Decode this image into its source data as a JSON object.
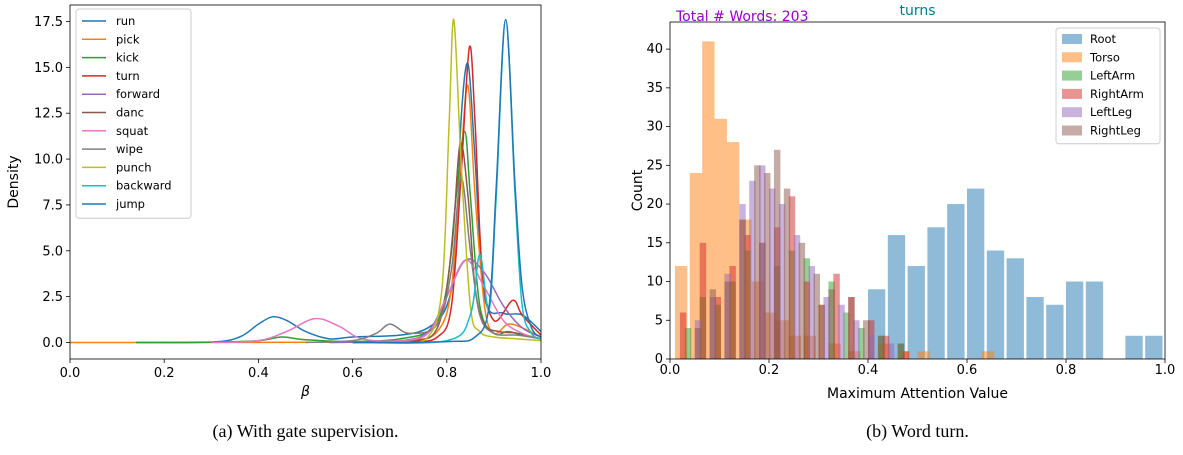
{
  "chart_data": [
    {
      "type": "line",
      "title": "",
      "xlabel": "β",
      "ylabel": "Density",
      "xlim": [
        0.0,
        1.0
      ],
      "ylim": [
        -0.9,
        18.4
      ],
      "xticks": [
        "0.0",
        "0.2",
        "0.4",
        "0.6",
        "0.8",
        "1.0"
      ],
      "yticks": [
        "0.0",
        "2.5",
        "5.0",
        "7.5",
        "10.0",
        "12.5",
        "15.0",
        "17.5"
      ],
      "legend_position": "upper-left",
      "caption": "(a) With gate supervision.",
      "series": [
        {
          "name": "run",
          "color": "#1f77b4",
          "x": [
            0.14,
            0.3,
            0.36,
            0.4,
            0.43,
            0.46,
            0.5,
            0.55,
            0.6,
            0.7,
            0.76,
            0.8,
            0.82,
            0.83,
            0.845,
            0.86,
            0.88,
            0.92,
            0.96,
            1.0
          ],
          "y": [
            0.0,
            0.02,
            0.3,
            1.0,
            1.4,
            1.2,
            0.6,
            0.2,
            0.3,
            0.4,
            0.8,
            2.0,
            5.0,
            12.0,
            15.2,
            10.0,
            2.5,
            1.6,
            1.5,
            0.6
          ]
        },
        {
          "name": "pick",
          "color": "#ff7f0e",
          "x": [
            0.0,
            0.14,
            0.6,
            0.72,
            0.78,
            0.81,
            0.83,
            0.845,
            0.86,
            0.88,
            0.9,
            0.93,
            0.96,
            1.0
          ],
          "y": [
            0.0,
            0.0,
            0.02,
            0.1,
            0.6,
            3.0,
            10.0,
            14.0,
            8.0,
            2.0,
            0.5,
            1.0,
            0.8,
            0.3
          ]
        },
        {
          "name": "kick",
          "color": "#2ca02c",
          "x": [
            0.14,
            0.3,
            0.4,
            0.45,
            0.5,
            0.6,
            0.7,
            0.77,
            0.8,
            0.82,
            0.838,
            0.85,
            0.87,
            0.9,
            0.93,
            0.96,
            1.0
          ],
          "y": [
            0.0,
            0.02,
            0.1,
            0.3,
            0.15,
            0.05,
            0.2,
            0.8,
            3.0,
            8.0,
            11.5,
            8.0,
            2.0,
            0.5,
            0.6,
            0.4,
            0.2
          ]
        },
        {
          "name": "turn",
          "color": "#d62728",
          "x": [
            0.6,
            0.72,
            0.78,
            0.81,
            0.83,
            0.848,
            0.86,
            0.875,
            0.9,
            0.94,
            0.96,
            1.0
          ],
          "y": [
            0.0,
            0.05,
            0.3,
            2.0,
            9.0,
            16.1,
            12.0,
            4.0,
            1.2,
            2.3,
            1.5,
            0.4
          ]
        },
        {
          "name": "forward",
          "color": "#9467bd",
          "x": [
            0.55,
            0.7,
            0.76,
            0.8,
            0.84,
            0.88,
            0.92,
            0.96,
            1.0
          ],
          "y": [
            0.0,
            0.1,
            0.6,
            2.5,
            4.5,
            3.8,
            2.0,
            0.8,
            0.3
          ]
        },
        {
          "name": "danc",
          "color": "#8c564b",
          "x": [
            0.6,
            0.72,
            0.78,
            0.81,
            0.828,
            0.845,
            0.86,
            0.88,
            0.91,
            0.95,
            1.0
          ],
          "y": [
            0.0,
            0.1,
            0.8,
            5.0,
            10.8,
            8.0,
            3.0,
            1.0,
            0.6,
            0.5,
            0.2
          ]
        },
        {
          "name": "squat",
          "color": "#e377c2",
          "x": [
            0.3,
            0.4,
            0.46,
            0.52,
            0.57,
            0.62,
            0.7,
            0.76,
            0.8,
            0.84,
            0.88,
            0.92,
            0.96,
            1.0
          ],
          "y": [
            0.0,
            0.1,
            0.6,
            1.3,
            0.9,
            0.2,
            0.1,
            0.5,
            2.5,
            4.5,
            3.0,
            1.2,
            0.5,
            0.2
          ]
        },
        {
          "name": "wipe",
          "color": "#7f7f7f",
          "x": [
            0.5,
            0.6,
            0.65,
            0.68,
            0.72,
            0.78,
            0.81,
            0.83,
            0.85,
            0.87,
            0.9,
            0.95,
            1.0
          ],
          "y": [
            0.0,
            0.1,
            0.5,
            1.0,
            0.5,
            1.0,
            4.0,
            9.0,
            5.0,
            1.5,
            0.5,
            0.4,
            0.2
          ]
        },
        {
          "name": "punch",
          "color": "#bcbd22",
          "x": [
            0.6,
            0.7,
            0.76,
            0.79,
            0.805,
            0.815,
            0.83,
            0.85,
            0.87,
            0.9,
            0.95,
            1.0
          ],
          "y": [
            0.0,
            0.05,
            0.3,
            3.0,
            12.0,
            17.6,
            10.0,
            2.0,
            0.6,
            0.3,
            0.2,
            0.1
          ]
        },
        {
          "name": "backward",
          "color": "#17becf",
          "x": [
            0.6,
            0.8,
            0.85,
            0.87,
            0.89,
            0.905,
            0.925,
            0.945,
            0.96,
            0.98,
            1.0
          ],
          "y": [
            0.0,
            0.1,
            1.5,
            4.8,
            1.8,
            8.0,
            17.6,
            8.0,
            2.0,
            0.5,
            0.2
          ]
        },
        {
          "name": "jump",
          "color": "#1f77b4",
          "x": [
            0.6,
            0.8,
            0.86,
            0.89,
            0.905,
            0.925,
            0.945,
            0.96,
            0.98,
            1.0
          ],
          "y": [
            0.0,
            0.05,
            0.3,
            2.0,
            8.5,
            17.6,
            8.5,
            3.0,
            0.8,
            0.3
          ]
        }
      ]
    },
    {
      "type": "bar",
      "title": "turns",
      "title_color": "#008080",
      "annotation": "Total # Words: 203",
      "annotation_color": "#9400d3",
      "xlabel": "Maximum Attention Value",
      "ylabel": "Count",
      "xlim": [
        0.0,
        1.0
      ],
      "ylim": [
        0,
        43.5
      ],
      "xticks": [
        "0.0",
        "0.2",
        "0.4",
        "0.6",
        "0.8",
        "1.0"
      ],
      "yticks": [
        "0",
        "5",
        "10",
        "15",
        "20",
        "25",
        "30",
        "35",
        "40"
      ],
      "legend_position": "upper-right",
      "caption": "(b) Word turn.",
      "series": [
        {
          "name": "Root",
          "color": "#1f77b4",
          "bin_width": 0.035,
          "bins": [
            [
              0.4,
              9
            ],
            [
              0.44,
              16
            ],
            [
              0.48,
              12
            ],
            [
              0.52,
              17
            ],
            [
              0.56,
              20
            ],
            [
              0.6,
              22
            ],
            [
              0.64,
              14
            ],
            [
              0.68,
              13
            ],
            [
              0.72,
              8
            ],
            [
              0.76,
              7
            ],
            [
              0.8,
              10
            ],
            [
              0.84,
              10
            ],
            [
              0.92,
              3
            ],
            [
              0.96,
              3
            ]
          ]
        },
        {
          "name": "Torso",
          "color": "#ff7f0e",
          "bin_width": 0.025,
          "bins": [
            [
              0.01,
              12
            ],
            [
              0.04,
              24
            ],
            [
              0.065,
              41
            ],
            [
              0.09,
              31
            ],
            [
              0.115,
              28
            ],
            [
              0.14,
              18
            ],
            [
              0.165,
              10
            ],
            [
              0.19,
              6
            ],
            [
              0.215,
              5
            ],
            [
              0.24,
              3
            ],
            [
              0.27,
              3
            ],
            [
              0.32,
              2
            ],
            [
              0.36,
              1
            ],
            [
              0.42,
              2
            ],
            [
              0.46,
              1
            ],
            [
              0.5,
              1
            ],
            [
              0.63,
              1
            ]
          ]
        },
        {
          "name": "LeftArm",
          "color": "#2ca02c",
          "bin_width": 0.013,
          "bins": [
            [
              0.03,
              4
            ],
            [
              0.06,
              8
            ],
            [
              0.09,
              7
            ],
            [
              0.12,
              10
            ],
            [
              0.15,
              14
            ],
            [
              0.18,
              15
            ],
            [
              0.21,
              12
            ],
            [
              0.24,
              14
            ],
            [
              0.27,
              13
            ],
            [
              0.3,
              7
            ],
            [
              0.32,
              10
            ],
            [
              0.35,
              6
            ],
            [
              0.38,
              4
            ],
            [
              0.42,
              3
            ],
            [
              0.46,
              2
            ]
          ]
        },
        {
          "name": "RightArm",
          "color": "#d62728",
          "bin_width": 0.013,
          "bins": [
            [
              0.02,
              6
            ],
            [
              0.06,
              15
            ],
            [
              0.09,
              8
            ],
            [
              0.12,
              12
            ],
            [
              0.15,
              16
            ],
            [
              0.18,
              15
            ],
            [
              0.21,
              17
            ],
            [
              0.24,
              21
            ],
            [
              0.27,
              10
            ],
            [
              0.3,
              7
            ],
            [
              0.33,
              11
            ],
            [
              0.36,
              8
            ],
            [
              0.4,
              5
            ],
            [
              0.43,
              3
            ],
            [
              0.47,
              1
            ]
          ]
        },
        {
          "name": "LeftLeg",
          "color": "#9467bd",
          "bin_width": 0.013,
          "bins": [
            [
              0.05,
              5
            ],
            [
              0.08,
              8
            ],
            [
              0.11,
              11
            ],
            [
              0.14,
              20
            ],
            [
              0.16,
              23
            ],
            [
              0.18,
              25
            ],
            [
              0.2,
              22
            ],
            [
              0.22,
              20
            ],
            [
              0.25,
              16
            ],
            [
              0.28,
              12
            ],
            [
              0.31,
              8
            ],
            [
              0.34,
              7
            ],
            [
              0.37,
              5
            ],
            [
              0.4,
              3
            ],
            [
              0.44,
              2
            ]
          ]
        },
        {
          "name": "RightLeg",
          "color": "#8c564b",
          "bin_width": 0.013,
          "bins": [
            [
              0.05,
              4
            ],
            [
              0.08,
              9
            ],
            [
              0.11,
              10
            ],
            [
              0.14,
              18
            ],
            [
              0.17,
              25
            ],
            [
              0.19,
              24
            ],
            [
              0.21,
              27
            ],
            [
              0.23,
              22
            ],
            [
              0.26,
              15
            ],
            [
              0.29,
              11
            ],
            [
              0.32,
              9
            ],
            [
              0.36,
              8
            ],
            [
              0.39,
              5
            ],
            [
              0.42,
              3
            ],
            [
              0.46,
              2
            ]
          ]
        }
      ]
    }
  ]
}
